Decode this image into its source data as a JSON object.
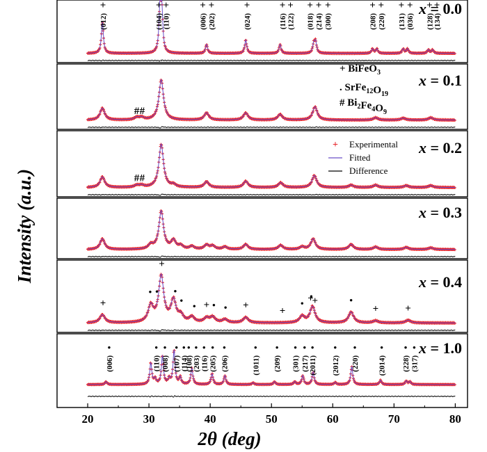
{
  "chart_data": {
    "type": "line",
    "xlabel": "2θ (deg)",
    "ylabel": "Intensity (a.u.)",
    "xlim": [
      15,
      82
    ],
    "xticks": [
      20,
      30,
      40,
      50,
      60,
      70,
      80
    ],
    "grid": false,
    "legend": {
      "placement": "inside panel x = 0.2, top-center",
      "entries": [
        {
          "name": "Experimental",
          "marker": "+",
          "color": "#e8242a"
        },
        {
          "name": "Fitted",
          "line": true,
          "color": "#6a4fc8"
        },
        {
          "name": "Difference",
          "line": true,
          "color": "#000000"
        }
      ]
    },
    "phase_legend": [
      {
        "symbol": "+",
        "phase_main": "BiFeO",
        "phase_sub": "3"
      },
      {
        "symbol": ".",
        "phase_main": "SrFe",
        "phase_sub": "12",
        "phase_main2": "O",
        "phase_sub2": "19"
      },
      {
        "symbol": "#",
        "phase_main": "Bi",
        "phase_sub": "2",
        "phase_main2": "Fe",
        "phase_sub2": "4",
        "phase_main3": "O",
        "phase_sub3": "9"
      }
    ],
    "panels": [
      {
        "label": "x = 0.0",
        "peaks": [
          [
            22.4,
            0.7
          ],
          [
            31.8,
            0.95
          ],
          [
            32.1,
            0.9
          ],
          [
            39.4,
            0.2
          ],
          [
            45.8,
            0.3
          ],
          [
            51.4,
            0.2
          ],
          [
            56.9,
            0.2
          ],
          [
            57.2,
            0.25
          ],
          [
            66.5,
            0.1
          ],
          [
            67.2,
            0.1
          ],
          [
            71.5,
            0.1
          ],
          [
            72.2,
            0.1
          ],
          [
            75.6,
            0.08
          ],
          [
            76.3,
            0.08
          ]
        ],
        "width": 0.2,
        "markers": [
          {
            "x": 22.5,
            "sym": "+",
            "hkl": "(012)"
          },
          {
            "x": 31.6,
            "sym": "+",
            "hkl": "(104)"
          },
          {
            "x": 32.8,
            "sym": "+",
            "hkl": "(110)"
          },
          {
            "x": 38.8,
            "sym": "+",
            "hkl": "(006)"
          },
          {
            "x": 40.2,
            "sym": "+",
            "hkl": "(202)"
          },
          {
            "x": 46.0,
            "sym": "+",
            "hkl": "(024)"
          },
          {
            "x": 51.8,
            "sym": "+",
            "hkl": "(116)"
          },
          {
            "x": 53.1,
            "sym": "+",
            "hkl": "(122)"
          },
          {
            "x": 56.3,
            "sym": "+",
            "hkl": "(018)"
          },
          {
            "x": 57.7,
            "sym": "+",
            "hkl": "(214)"
          },
          {
            "x": 59.2,
            "sym": "+",
            "hkl": "(300)"
          },
          {
            "x": 66.5,
            "sym": "+",
            "hkl": "(208)"
          },
          {
            "x": 67.9,
            "sym": "+",
            "hkl": "(220)"
          },
          {
            "x": 71.2,
            "sym": "+",
            "hkl": "(131)"
          },
          {
            "x": 72.6,
            "sym": "+",
            "hkl": "(036)"
          },
          {
            "x": 75.8,
            "sym": "+",
            "hkl": "(128)"
          },
          {
            "x": 77.0,
            "sym": "+",
            "hkl": "(134)"
          }
        ]
      },
      {
        "label": "x = 0.1",
        "peaks": [
          [
            22.4,
            0.25
          ],
          [
            28.0,
            0.05
          ],
          [
            28.8,
            0.05
          ],
          [
            32.0,
            0.85
          ],
          [
            39.4,
            0.15
          ],
          [
            45.8,
            0.15
          ],
          [
            51.4,
            0.12
          ],
          [
            57.1,
            0.28
          ],
          [
            67.0,
            0.05
          ],
          [
            71.5,
            0.04
          ],
          [
            76.0,
            0.05
          ]
        ],
        "width": 0.45,
        "markers": [
          {
            "x": 28.0,
            "sym": "#",
            "hkl": ""
          },
          {
            "x": 28.9,
            "sym": "#",
            "hkl": ""
          }
        ]
      },
      {
        "label": "x = 0.2",
        "peaks": [
          [
            22.4,
            0.22
          ],
          [
            28.0,
            0.04
          ],
          [
            28.8,
            0.04
          ],
          [
            32.0,
            0.9
          ],
          [
            34.0,
            0.05
          ],
          [
            39.4,
            0.12
          ],
          [
            45.8,
            0.13
          ],
          [
            51.5,
            0.1
          ],
          [
            57.0,
            0.25
          ],
          [
            63.0,
            0.05
          ],
          [
            67.0,
            0.05
          ],
          [
            72.0,
            0.04
          ],
          [
            76.0,
            0.04
          ]
        ],
        "width": 0.45,
        "markers": [
          {
            "x": 28.0,
            "sym": "#",
            "hkl": ""
          },
          {
            "x": 28.9,
            "sym": "#",
            "hkl": ""
          }
        ]
      },
      {
        "label": "x = 0.3",
        "peaks": [
          [
            22.4,
            0.25
          ],
          [
            30.3,
            0.1
          ],
          [
            32.0,
            0.9
          ],
          [
            34.0,
            0.2
          ],
          [
            35.2,
            0.08
          ],
          [
            37.0,
            0.07
          ],
          [
            39.4,
            0.1
          ],
          [
            40.4,
            0.08
          ],
          [
            42.4,
            0.06
          ],
          [
            45.8,
            0.12
          ],
          [
            51.5,
            0.1
          ],
          [
            55.0,
            0.06
          ],
          [
            56.8,
            0.25
          ],
          [
            63.0,
            0.12
          ],
          [
            67.0,
            0.06
          ],
          [
            72.0,
            0.05
          ],
          [
            76.0,
            0.04
          ]
        ],
        "width": 0.45,
        "markers": []
      },
      {
        "label": "x = 0.4",
        "peaks": [
          [
            22.4,
            0.15
          ],
          [
            30.3,
            0.3
          ],
          [
            32.0,
            0.85
          ],
          [
            34.0,
            0.4
          ],
          [
            35.2,
            0.12
          ],
          [
            37.0,
            0.1
          ],
          [
            39.4,
            0.08
          ],
          [
            40.4,
            0.1
          ],
          [
            42.4,
            0.06
          ],
          [
            45.8,
            0.1
          ],
          [
            55.0,
            0.12
          ],
          [
            56.7,
            0.3
          ],
          [
            63.0,
            0.2
          ],
          [
            67.0,
            0.04
          ],
          [
            72.3,
            0.05
          ]
        ],
        "width": 0.5,
        "markers": [
          {
            "x": 22.5,
            "sym": "+",
            "hkl": ""
          },
          {
            "x": 30.2,
            "sym": "•",
            "hkl": ""
          },
          {
            "x": 31.3,
            "sym": "•",
            "hkl": ""
          },
          {
            "x": 32.1,
            "sym": "+",
            "hkl": ""
          },
          {
            "x": 34.3,
            "sym": "•",
            "hkl": ""
          },
          {
            "x": 35.3,
            "sym": "•",
            "hkl": ""
          },
          {
            "x": 37.4,
            "sym": "•",
            "hkl": ""
          },
          {
            "x": 39.4,
            "sym": "+",
            "hkl": ""
          },
          {
            "x": 40.6,
            "sym": "•",
            "hkl": ""
          },
          {
            "x": 42.5,
            "sym": "•",
            "hkl": ""
          },
          {
            "x": 45.8,
            "sym": "+",
            "hkl": ""
          },
          {
            "x": 51.8,
            "sym": "+",
            "hkl": ""
          },
          {
            "x": 55.0,
            "sym": "•",
            "hkl": ""
          },
          {
            "x": 56.5,
            "sym": "•",
            "hkl": ""
          },
          {
            "x": 56.4,
            "sym": "+",
            "hkl": ""
          },
          {
            "x": 57.1,
            "sym": "+",
            "hkl": ""
          },
          {
            "x": 63.0,
            "sym": "•",
            "hkl": ""
          },
          {
            "x": 67.0,
            "sym": "+",
            "hkl": ""
          },
          {
            "x": 72.3,
            "sym": "+",
            "hkl": ""
          }
        ]
      },
      {
        "label": "x = 1.0",
        "peaks": [
          [
            23.0,
            0.08
          ],
          [
            30.3,
            0.6
          ],
          [
            31.0,
            0.15
          ],
          [
            32.2,
            0.8
          ],
          [
            33.3,
            0.15
          ],
          [
            34.1,
            0.95
          ],
          [
            35.1,
            0.2
          ],
          [
            37.0,
            0.45
          ],
          [
            40.3,
            0.3
          ],
          [
            42.4,
            0.25
          ],
          [
            47.0,
            0.05
          ],
          [
            50.5,
            0.08
          ],
          [
            53.8,
            0.08
          ],
          [
            55.1,
            0.25
          ],
          [
            56.8,
            0.35
          ],
          [
            60.4,
            0.06
          ],
          [
            63.1,
            0.5
          ],
          [
            67.8,
            0.12
          ],
          [
            72.0,
            0.1
          ],
          [
            72.6,
            0.08
          ]
        ],
        "width": 0.2,
        "markers": [
          {
            "x": 23.5,
            "sym": "•",
            "hkl": "(006)"
          },
          {
            "x": 31.2,
            "sym": "•",
            "hkl": "(110)"
          },
          {
            "x": 32.6,
            "sym": "•",
            "hkl": "(008)"
          },
          {
            "x": 34.5,
            "sym": "•",
            "hkl": "(107)"
          },
          {
            "x": 35.7,
            "sym": "•",
            "hkl": "(114)"
          },
          {
            "x": 36.5,
            "sym": "•",
            "hkl": "(108)"
          },
          {
            "x": 37.7,
            "sym": "•",
            "hkl": "(203)"
          },
          {
            "x": 39.0,
            "sym": "•",
            "hkl": "(116)"
          },
          {
            "x": 40.4,
            "sym": "•",
            "hkl": "(205)"
          },
          {
            "x": 42.3,
            "sym": "•",
            "hkl": "(206)"
          },
          {
            "x": 47.4,
            "sym": "•",
            "hkl": "(1011)"
          },
          {
            "x": 50.9,
            "sym": "•",
            "hkl": "(209)"
          },
          {
            "x": 53.9,
            "sym": "•",
            "hkl": "(301)"
          },
          {
            "x": 55.4,
            "sym": "•",
            "hkl": "(217)"
          },
          {
            "x": 56.7,
            "sym": "•",
            "hkl": "(2011)"
          },
          {
            "x": 60.4,
            "sym": "•",
            "hkl": "(2012)"
          },
          {
            "x": 63.6,
            "sym": "•",
            "hkl": "(220)"
          },
          {
            "x": 68.0,
            "sym": "•",
            "hkl": "(2014)"
          },
          {
            "x": 71.9,
            "sym": "•",
            "hkl": "(228)"
          },
          {
            "x": 73.3,
            "sym": "•",
            "hkl": "(317)"
          }
        ]
      }
    ],
    "colors": {
      "experimental": "#e8242a",
      "fitted": "#6a4fc8",
      "difference": "#000000"
    }
  }
}
